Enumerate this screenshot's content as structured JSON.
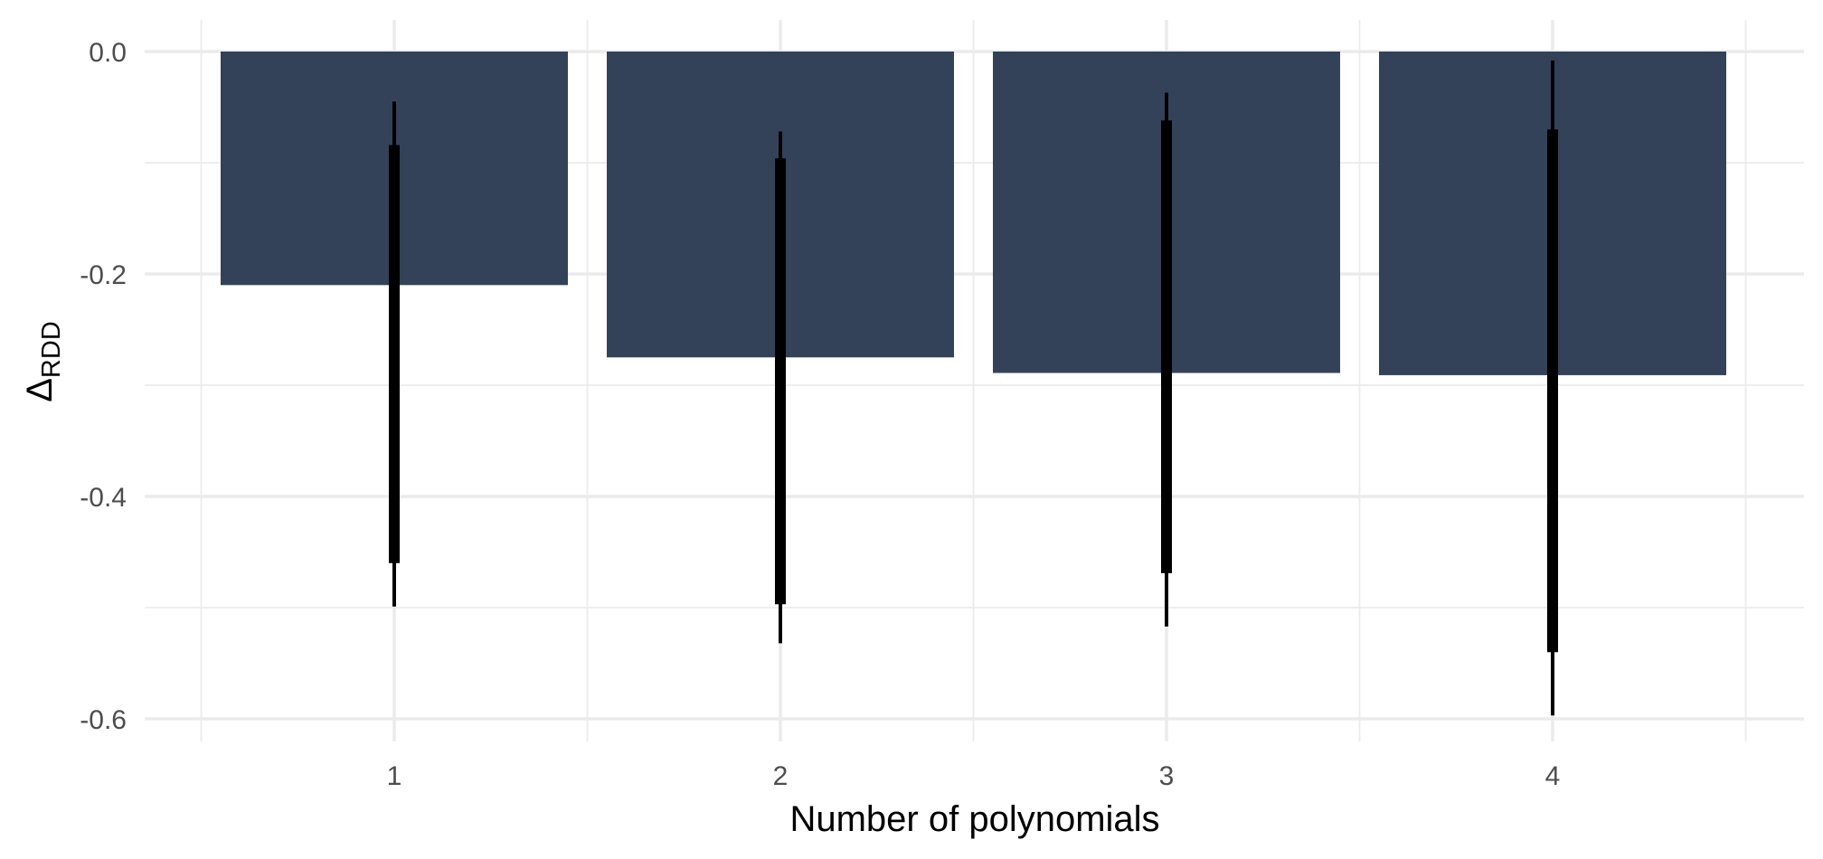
{
  "chart_data": {
    "type": "bar",
    "xlabel": "Number of polynomials",
    "ylabel": "Δ",
    "ylabel_subscript": "RDD",
    "categories": [
      "1",
      "2",
      "3",
      "4"
    ],
    "values": [
      -0.21,
      -0.275,
      -0.289,
      -0.291
    ],
    "inner_interval": {
      "low": [
        -0.46,
        -0.497,
        -0.469,
        -0.54
      ],
      "high": [
        -0.084,
        -0.096,
        -0.062,
        -0.07
      ]
    },
    "outer_interval": {
      "low": [
        -0.499,
        -0.532,
        -0.517,
        -0.597
      ],
      "high": [
        -0.045,
        -0.072,
        -0.037,
        -0.008
      ]
    },
    "yticks": [
      0.0,
      -0.2,
      -0.4,
      -0.6
    ],
    "ytick_labels": [
      "0.0",
      "-0.2",
      "-0.4",
      "-0.6"
    ],
    "ylim": [
      -0.63,
      0.03
    ],
    "grid": true,
    "legend": "none",
    "bar_color": "#344259",
    "errorbar_color": "#000000",
    "grid_color": "#ebebeb"
  }
}
